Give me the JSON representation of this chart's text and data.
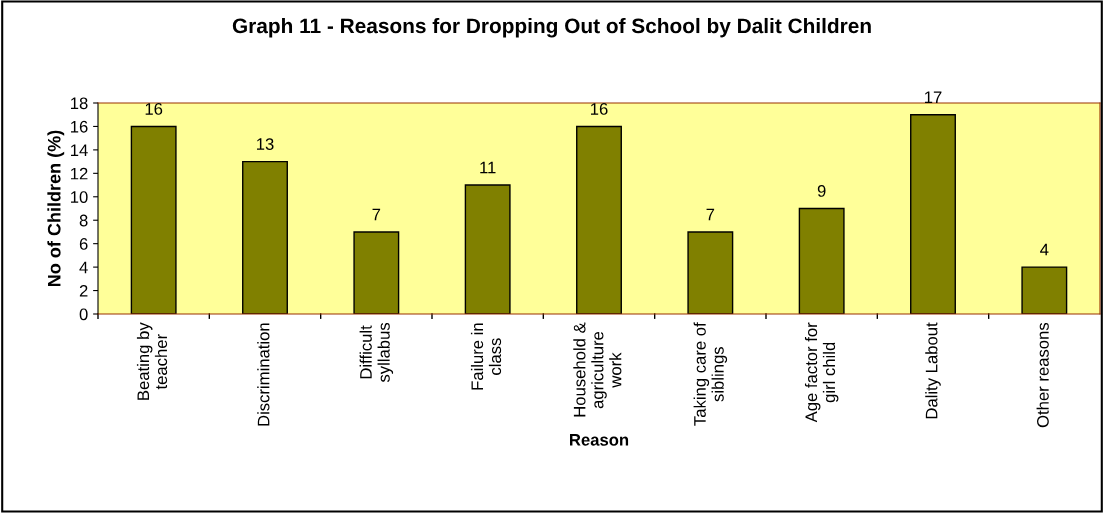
{
  "chart_data": {
    "type": "bar",
    "title": "Graph 11 - Reasons for Dropping Out of School by Dalit Children",
    "xlabel": "Reason",
    "ylabel": "No of Children (%)",
    "categories": [
      "Beating by\nteacher",
      "Discrimination",
      "Difficult\nsyllabus",
      "Failure in\nclass",
      "Household &\nagriculture\nwork",
      "Taking care of\nsiblings",
      "Age factor for\ngirl child",
      "Dality Labout",
      "Other reasons"
    ],
    "values": [
      16,
      13,
      7,
      11,
      16,
      7,
      9,
      17,
      4
    ],
    "color": "#808000",
    "ylim": [
      0,
      18
    ],
    "yticks": [
      0,
      2,
      4,
      6,
      8,
      10,
      12,
      14,
      16,
      18
    ],
    "grid": false,
    "data_labels": true,
    "legend": false
  }
}
